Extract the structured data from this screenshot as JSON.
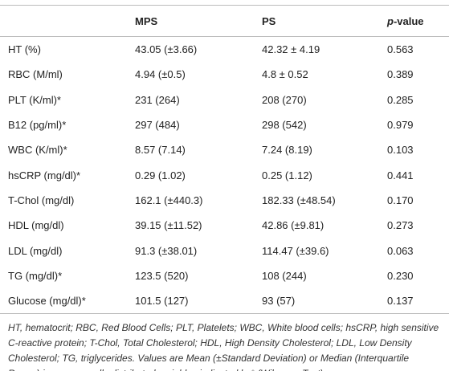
{
  "table": {
    "header": [
      "MPS",
      "PS",
      "p-value"
    ],
    "rows": [
      [
        "HT (%)",
        "43.05 (±3.66)",
        "42.32 ± 4.19",
        "0.563"
      ],
      [
        "RBC (M/ml)",
        "4.94 (±0.5)",
        "4.8 ± 0.52",
        "0.389"
      ],
      [
        "PLT (K/ml)*",
        "231 (264)",
        "208 (270)",
        "0.285"
      ],
      [
        "B12 (pg/ml)*",
        "297 (484)",
        "298 (542)",
        "0.979"
      ],
      [
        "WBC (K/ml)*",
        "8.57 (7.14)",
        "7.24 (8.19)",
        "0.103"
      ],
      [
        "hsCRP (mg/dl)*",
        "0.29 (1.02)",
        "0.25 (1.12)",
        "0.441"
      ],
      [
        "T-Chol (mg/dl)",
        "162.1 (±440.3)",
        "182.33 (±48.54)",
        "0.170"
      ],
      [
        "HDL (mg/dl)",
        "39.15 (±11.52)",
        "42.86 (±9.81)",
        "0.273"
      ],
      [
        "LDL (mg/dl)",
        "91.3 (±38.01)",
        "114.47 (±39.6)",
        "0.063"
      ],
      [
        "TG (mg/dl)*",
        "123.5 (520)",
        "108 (244)",
        "0.230"
      ],
      [
        "Glucose (mg/dl)*",
        "101.5 (127)",
        "93 (57)",
        "0.137"
      ]
    ]
  },
  "footnote": "HT, hematocrit; RBC, Red Blood Cells; PLT, Platelets; WBC, White blood cells; hsCRP, high sensitive C-reactive protein; T-Chol, Total Cholesterol; HDL, High Density Cholesterol; LDL, Low Density Cholesterol; TG, triglycerides. Values are Mean (±Standard Deviation) or Median (Interquartile Range) in non-normally distributed variables indicated by* (Wilcoxon Test)."
}
